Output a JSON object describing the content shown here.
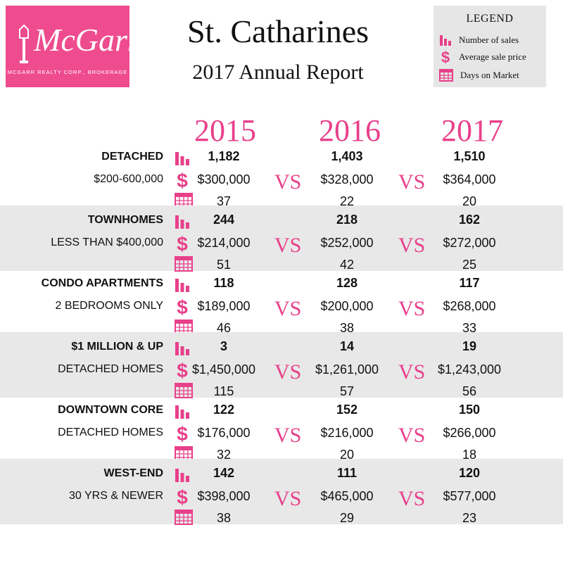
{
  "logo": {
    "brand": "McGarr",
    "sub": "MCGARR REALTY CORP., BROKERAGE"
  },
  "title": "St. Catharines",
  "subtitle": "2017 Annual Report",
  "legend": {
    "title": "LEGEND",
    "sales": "Number of sales",
    "price": "Average sale price",
    "days": "Days on Market"
  },
  "years": [
    "2015",
    "2016",
    "2017"
  ],
  "vs": "VS",
  "accent": "#e8408a",
  "rows": [
    {
      "label": "DETACHED",
      "sub": "$200-600,000",
      "sales": [
        "1,182",
        "1,403",
        "1,510"
      ],
      "price": [
        "$300,000",
        "$328,000",
        "$364,000"
      ],
      "days": [
        "37",
        "22",
        "20"
      ]
    },
    {
      "label": "TOWNHOMES",
      "sub": "LESS THAN $400,000",
      "sales": [
        "244",
        "218",
        "162"
      ],
      "price": [
        "$214,000",
        "$252,000",
        "$272,000"
      ],
      "days": [
        "51",
        "42",
        "25"
      ]
    },
    {
      "label": "CONDO APARTMENTS",
      "sub": "2 BEDROOMS ONLY",
      "sales": [
        "118",
        "128",
        "117"
      ],
      "price": [
        "$189,000",
        "$200,000",
        "$268,000"
      ],
      "days": [
        "46",
        "38",
        "33"
      ]
    },
    {
      "label": "$1 MILLION & UP",
      "sub": "DETACHED HOMES",
      "sales": [
        "3",
        "14",
        "19"
      ],
      "price": [
        "$1,450,000",
        "$1,261,000",
        "$1,243,000"
      ],
      "days": [
        "115",
        "57",
        "56"
      ]
    },
    {
      "label": "DOWNTOWN CORE",
      "sub": "DETACHED HOMES",
      "sales": [
        "122",
        "152",
        "150"
      ],
      "price": [
        "$176,000",
        "$216,000",
        "$266,000"
      ],
      "days": [
        "32",
        "20",
        "18"
      ]
    },
    {
      "label": "WEST-END",
      "sub": "30 YRS & NEWER",
      "sales": [
        "142",
        "111",
        "120"
      ],
      "price": [
        "$398,000",
        "$465,000",
        "$577,000"
      ],
      "days": [
        "38",
        "29",
        "23"
      ]
    }
  ]
}
